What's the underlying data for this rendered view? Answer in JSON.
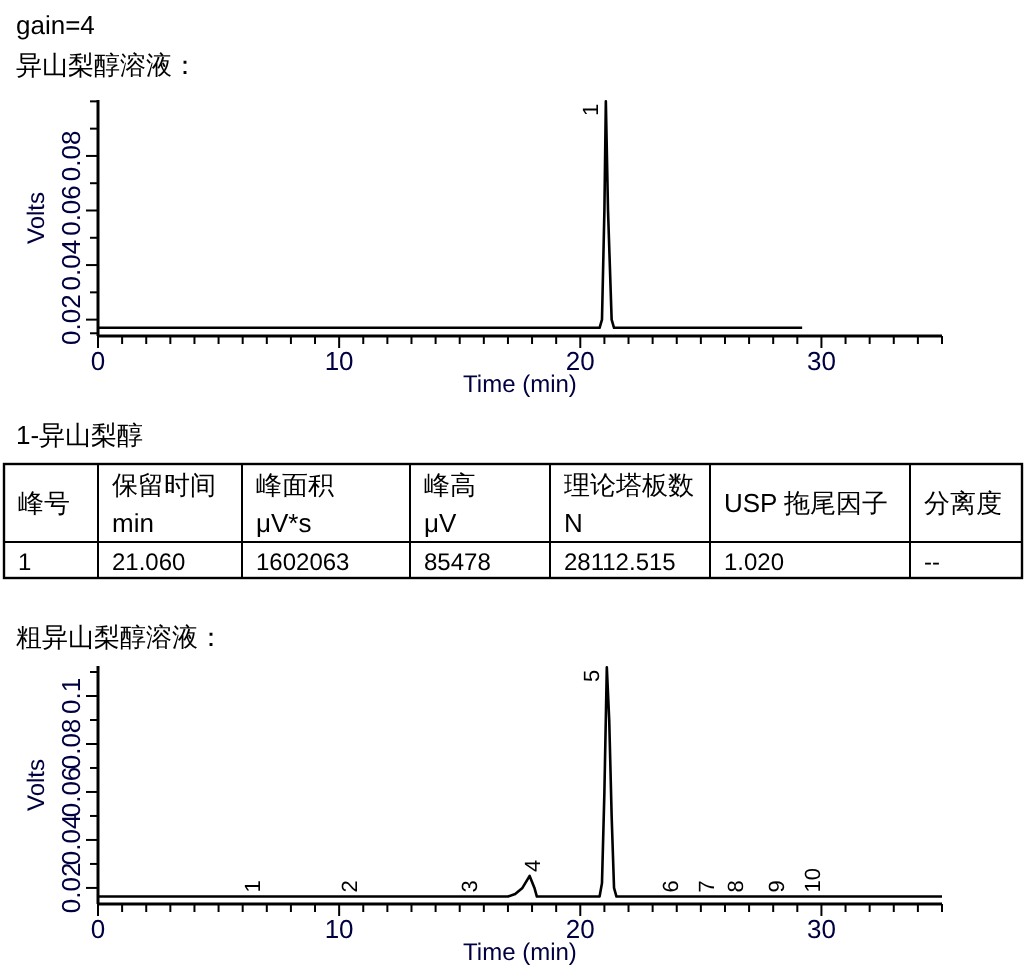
{
  "chart_data": [
    {
      "type": "line",
      "title": "gain=4",
      "subtitle": "异山梨醇溶液：",
      "xlabel": "Time (min)",
      "ylabel": "Volts",
      "xlim": [
        0,
        35
      ],
      "ylim": [
        0.014,
        0.1005
      ],
      "xticks": [
        0,
        {
          "value": 1,
          "label": null
        },
        {
          "value": 2,
          "label": null
        },
        {
          "value": 3,
          "label": null
        },
        {
          "value": 4,
          "label": null
        },
        {
          "value": 5,
          "label": null
        },
        {
          "value": 6,
          "label": null
        },
        {
          "value": 7,
          "label": null
        },
        {
          "value": 8,
          "label": null
        },
        {
          "value": 9,
          "label": null
        },
        10,
        {
          "value": 11,
          "label": null
        },
        {
          "value": 12,
          "label": null
        },
        {
          "value": 13,
          "label": null
        },
        {
          "value": 14,
          "label": null
        },
        {
          "value": 15,
          "label": null
        },
        {
          "value": 16,
          "label": null
        },
        {
          "value": 17,
          "label": null
        },
        {
          "value": 18,
          "label": null
        },
        {
          "value": 19,
          "label": null
        },
        20,
        {
          "value": 21,
          "label": null
        },
        {
          "value": 22,
          "label": null
        },
        {
          "value": 23,
          "label": null
        },
        {
          "value": 24,
          "label": null
        },
        {
          "value": 25,
          "label": null
        },
        {
          "value": 26,
          "label": null
        },
        {
          "value": 27,
          "label": null
        },
        {
          "value": 28,
          "label": null
        },
        {
          "value": 29,
          "label": null
        },
        30,
        {
          "value": 31,
          "label": null
        },
        {
          "value": 32,
          "label": null
        },
        {
          "value": 33,
          "label": null
        },
        {
          "value": 34,
          "label": null
        },
        {
          "value": 35,
          "label": null
        }
      ],
      "yticks": [
        {
          "value": 0.015,
          "label": null
        },
        0.02,
        {
          "value": 0.03,
          "label": null
        },
        0.04,
        {
          "value": 0.05,
          "label": null
        },
        0.06,
        {
          "value": 0.07,
          "label": null
        },
        0.08,
        {
          "value": 0.09,
          "label": null
        },
        {
          "value": 0.1,
          "label": null
        }
      ],
      "series": [
        {
          "color": "#000000",
          "x": [
            0,
            20.8,
            20.9,
            21.0,
            21.06,
            21.15,
            21.3,
            21.4,
            29.2
          ],
          "values": [
            0.017,
            0.017,
            0.02,
            0.06,
            0.1,
            0.06,
            0.02,
            0.017,
            0.017
          ]
        }
      ],
      "annotations": [
        {
          "text": "1",
          "x": 21.06,
          "y": 0.1
        }
      ],
      "grid": false,
      "marker": "none",
      "line_style": "solid"
    },
    {
      "type": "other",
      "title": "1-异山梨醇",
      "annotations": [
        "峰号",
        "保留时间",
        "min",
        "峰面积",
        "μV*s",
        "峰高",
        "μV",
        "理论塔板数",
        "N",
        "USP 拖尾因子",
        "分离度",
        "1",
        "21.060",
        "1602063",
        "85478",
        "28112.515",
        "1.020",
        "--"
      ]
    },
    {
      "type": "line",
      "title": "粗异山梨醇溶液：",
      "xlabel": "Time (min)",
      "ylabel": "Volts",
      "xlim": [
        0,
        35
      ],
      "ylim": [
        0.0133,
        0.1125
      ],
      "xticks": [
        0,
        {
          "value": 1,
          "label": null
        },
        {
          "value": 2,
          "label": null
        },
        {
          "value": 3,
          "label": null
        },
        {
          "value": 4,
          "label": null
        },
        {
          "value": 5,
          "label": null
        },
        {
          "value": 6,
          "label": null
        },
        {
          "value": 7,
          "label": null
        },
        {
          "value": 8,
          "label": null
        },
        {
          "value": 9,
          "label": null
        },
        10,
        {
          "value": 11,
          "label": null
        },
        {
          "value": 12,
          "label": null
        },
        {
          "value": 13,
          "label": null
        },
        {
          "value": 14,
          "label": null
        },
        {
          "value": 15,
          "label": null
        },
        {
          "value": 16,
          "label": null
        },
        {
          "value": 17,
          "label": null
        },
        {
          "value": 18,
          "label": null
        },
        {
          "value": 19,
          "label": null
        },
        20,
        {
          "value": 21,
          "label": null
        },
        {
          "value": 22,
          "label": null
        },
        {
          "value": 23,
          "label": null
        },
        {
          "value": 24,
          "label": null
        },
        {
          "value": 25,
          "label": null
        },
        {
          "value": 26,
          "label": null
        },
        {
          "value": 27,
          "label": null
        },
        {
          "value": 28,
          "label": null
        },
        {
          "value": 29,
          "label": null
        },
        30,
        {
          "value": 31,
          "label": null
        },
        {
          "value": 32,
          "label": null
        },
        {
          "value": 33,
          "label": null
        },
        {
          "value": 34,
          "label": null
        },
        {
          "value": 35,
          "label": null
        }
      ],
      "yticks": [
        0.02,
        {
          "value": 0.03,
          "label": null
        },
        0.04,
        {
          "value": 0.05,
          "label": null
        },
        0.06,
        {
          "value": 0.07,
          "label": null
        },
        0.08,
        {
          "value": 0.09,
          "label": null
        },
        0.1,
        {
          "value": 0.11,
          "label": null
        }
      ],
      "series": [
        {
          "color": "#000000",
          "x": [
            0,
            17.0,
            17.3,
            17.6,
            17.9,
            18.1,
            18.2,
            20.8,
            20.9,
            21.0,
            21.1,
            21.2,
            21.3,
            21.4,
            21.5,
            35
          ],
          "values": [
            0.0164,
            0.0164,
            0.0175,
            0.02,
            0.025,
            0.02,
            0.0164,
            0.0164,
            0.022,
            0.06,
            0.112,
            0.09,
            0.05,
            0.02,
            0.0164,
            0.0164
          ]
        }
      ],
      "annotations": [
        {
          "text": "1",
          "x": 6.4,
          "y": 0.0164
        },
        {
          "text": "2",
          "x": 10.4,
          "y": 0.0164
        },
        {
          "text": "3",
          "x": 15.4,
          "y": 0.0164
        },
        {
          "text": "4",
          "x": 18.0,
          "y": 0.025
        },
        {
          "text": "5",
          "x": 21.1,
          "y": 0.112
        },
        {
          "text": "6",
          "x": 23.7,
          "y": 0.0164
        },
        {
          "text": "7",
          "x": 25.2,
          "y": 0.0164
        },
        {
          "text": "8",
          "x": 26.4,
          "y": 0.0164
        },
        {
          "text": "9",
          "x": 28.1,
          "y": 0.0164
        },
        {
          "text": "10",
          "x": 29.6,
          "y": 0.0164
        }
      ],
      "grid": false,
      "marker": "none",
      "line_style": "solid"
    }
  ]
}
